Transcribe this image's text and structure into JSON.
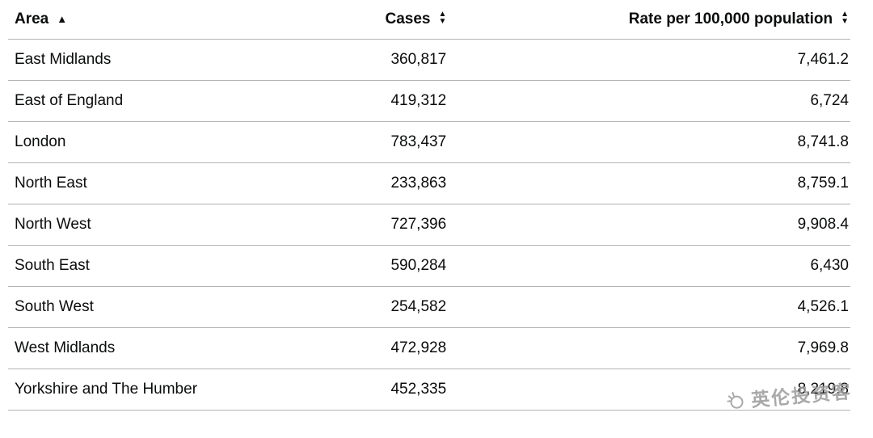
{
  "chart_data": {
    "type": "table",
    "columns": [
      "Area",
      "Cases",
      "Rate per 100,000 population"
    ],
    "rows": [
      [
        "East Midlands",
        360817,
        7461.2
      ],
      [
        "East of England",
        419312,
        6724
      ],
      [
        "London",
        783437,
        8741.8
      ],
      [
        "North East",
        233863,
        8759.1
      ],
      [
        "North West",
        727396,
        9908.4
      ],
      [
        "South East",
        590284,
        6430
      ],
      [
        "South West",
        254582,
        4526.1
      ],
      [
        "West Midlands",
        472928,
        7969.8
      ],
      [
        "Yorkshire and The Humber",
        452335,
        8219.8
      ]
    ],
    "sort": {
      "column": "Area",
      "direction": "ascending"
    },
    "title": "",
    "grid": "horizontal-row-dividers"
  },
  "table": {
    "columns": [
      {
        "label": "Area",
        "sort_state": "ascending"
      },
      {
        "label": "Cases",
        "sort_state": "none"
      },
      {
        "label": "Rate per 100,000 population",
        "sort_state": "none"
      }
    ],
    "icons": {
      "sort_asc": "▲",
      "sort_up": "▲",
      "sort_down": "▼"
    },
    "rows": [
      {
        "area": "East Midlands",
        "cases": "360,817",
        "rate": "7,461.2"
      },
      {
        "area": "East of England",
        "cases": "419,312",
        "rate": "6,724"
      },
      {
        "area": "London",
        "cases": "783,437",
        "rate": "8,741.8"
      },
      {
        "area": "North East",
        "cases": "233,863",
        "rate": "8,759.1"
      },
      {
        "area": "North West",
        "cases": "727,396",
        "rate": "9,908.4"
      },
      {
        "area": "South East",
        "cases": "590,284",
        "rate": "6,430"
      },
      {
        "area": "South West",
        "cases": "254,582",
        "rate": "4,526.1"
      },
      {
        "area": "West Midlands",
        "cases": "472,928",
        "rate": "7,969.8"
      },
      {
        "area": "Yorkshire and The Humber",
        "cases": "452,335",
        "rate": "8,219.8"
      }
    ],
    "colors": {
      "text": "#0b0c0c",
      "divider": "#b1b4b6",
      "background": "#ffffff"
    }
  },
  "watermark": {
    "text": "英伦投资客",
    "color": "#9b9b9b"
  }
}
